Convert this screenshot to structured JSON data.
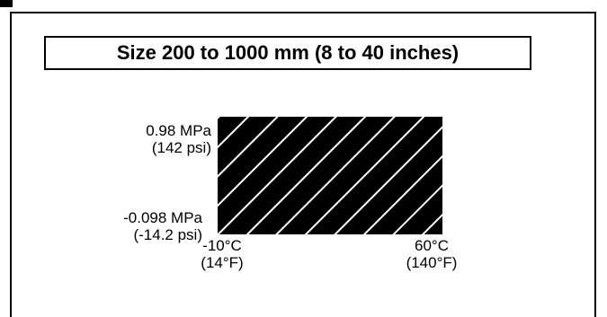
{
  "title": "Size 200 to 1000 mm (8 to 40 inches)",
  "pressure_max": {
    "metric": "0.98 MPa",
    "imperial": "(142 psi)"
  },
  "pressure_min": {
    "metric": "-0.098 MPa",
    "imperial": "(-14.2 psi)"
  },
  "temp_min": {
    "metric": "-10°C",
    "imperial": "(14°F)"
  },
  "temp_max": {
    "metric": "60°C",
    "imperial": "(140°F)"
  },
  "colors": {
    "fill": "#000000",
    "hatch": "#ffffff",
    "border": "#000000"
  }
}
